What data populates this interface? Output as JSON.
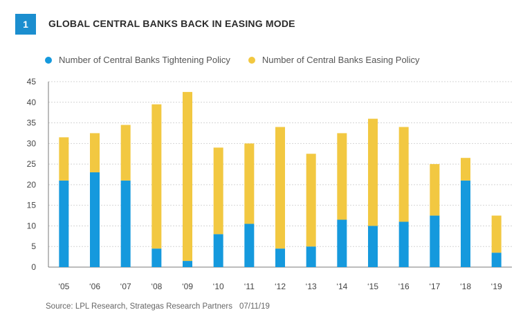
{
  "figure": {
    "number": "1",
    "title": "GLOBAL CENTRAL BANKS BACK IN EASING MODE",
    "source": "Source: LPL Research, Strategas Research Partners",
    "date": "07/11/19"
  },
  "colors": {
    "badge": "#1b8ecf",
    "tightening": "#1599dd",
    "easing": "#f2c841",
    "grid": "#d4d4d4",
    "axis": "#7a7a7a"
  },
  "chart_data": {
    "type": "bar",
    "stacked": true,
    "categories": [
      "‘05",
      "‘06",
      "‘07",
      "‘08",
      "‘09",
      "‘10",
      "‘11",
      "‘12",
      "‘13",
      "‘14",
      "‘15",
      "‘16",
      "‘17",
      "‘18",
      "‘19"
    ],
    "series": [
      {
        "name": "Number of Central Banks Tightening Policy",
        "color": "#1599dd",
        "values": [
          21,
          23,
          21,
          4.5,
          1.5,
          8,
          10.5,
          4.5,
          5,
          11.5,
          10,
          11,
          12.5,
          21,
          3.5
        ]
      },
      {
        "name": "Number of Central Banks Easing Policy",
        "color": "#f2c841",
        "values": [
          10.5,
          9.5,
          13.5,
          35,
          41,
          21,
          19.5,
          29.5,
          22.5,
          21,
          26,
          23,
          12.5,
          5.5,
          9
        ]
      }
    ],
    "ylim": [
      0,
      45
    ],
    "yticks": [
      "0",
      "5",
      "10",
      "15",
      "20",
      "25",
      "30",
      "35",
      "40",
      "45"
    ],
    "xlabel": "",
    "ylabel": "",
    "grid": true,
    "legend_position": "top-left"
  }
}
